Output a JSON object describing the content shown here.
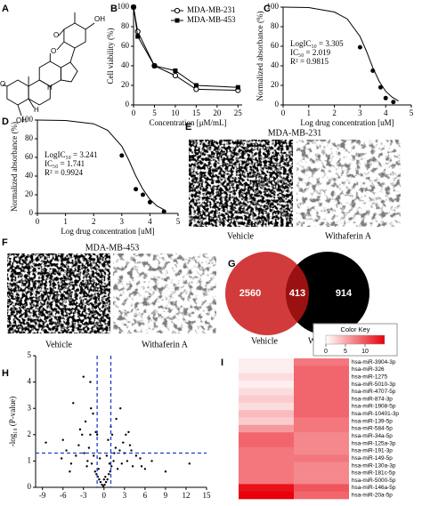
{
  "panel_labels": [
    "A",
    "B",
    "C",
    "D",
    "E",
    "F",
    "G",
    "H",
    "I"
  ],
  "structure_labels": [
    "OH",
    "O",
    "O",
    "O",
    "OH",
    "H",
    "H"
  ],
  "micrographs": [
    {
      "title": "MDA-MB-231",
      "labels": [
        "Vehicle",
        "Withaferin A"
      ]
    },
    {
      "title": "MDA-MB-453",
      "labels": [
        "Vehicle",
        "Withaferin A"
      ]
    }
  ],
  "chart_data": [
    {
      "type": "line",
      "xlabel": "Concentration [μM/mL]",
      "ylabel": "Cell viability (%)",
      "xlim": [
        0,
        26
      ],
      "xticks": [
        0,
        5,
        10,
        15,
        20,
        25
      ],
      "ylim": [
        0,
        100
      ],
      "yticks": [
        0,
        20,
        40,
        60,
        80,
        100
      ],
      "x": [
        0,
        1,
        5,
        10,
        15,
        25
      ],
      "legend": "top-right",
      "series": [
        {
          "name": "MDA-MB-231",
          "marker": "circle-open",
          "color": "#000000",
          "values": [
            100,
            75,
            40,
            30,
            16,
            15
          ]
        },
        {
          "name": "MDA-MB-453",
          "marker": "square",
          "color": "#000000",
          "values": [
            100,
            70,
            40,
            35,
            20,
            18
          ]
        }
      ]
    },
    {
      "type": "dose-response",
      "xlabel": "Log drug concentration [uM]",
      "ylabel": "Normalized absorbance (%)",
      "xlim": [
        0,
        5
      ],
      "xticks": [
        0,
        1,
        2,
        3,
        4,
        5
      ],
      "ylim": [
        0,
        100
      ],
      "yticks": [
        0,
        20,
        40,
        60,
        80,
        100
      ],
      "annotations": [
        "LogIC₅₀ = 3.305",
        "IC₅₀ = 2.019",
        "R² = 0.9815"
      ],
      "x": [
        3.0,
        3.5,
        3.8,
        4.0,
        4.3
      ],
      "values": [
        59,
        35,
        18,
        7,
        3
      ],
      "fit_x": [
        0,
        1,
        2,
        2.5,
        3,
        3.25,
        3.5,
        3.75,
        4,
        4.25,
        4.5
      ],
      "fit_values": [
        100,
        99.5,
        95,
        88,
        70,
        55,
        38,
        24,
        14,
        8,
        4
      ],
      "color": "#000000"
    },
    {
      "type": "dose-response",
      "xlabel": "Log drug concentration [uM]",
      "ylabel": "Normalized absorbance (%)",
      "xlim": [
        0,
        5
      ],
      "xticks": [
        0,
        1,
        2,
        3,
        4,
        5
      ],
      "ylim": [
        0,
        100
      ],
      "yticks": [
        0,
        20,
        40,
        60,
        80,
        100
      ],
      "annotations": [
        "LogIC₅₀ = 3.241",
        "IC₅₀ = 1.741",
        "R² = 0.9924"
      ],
      "x": [
        3.0,
        3.5,
        3.75,
        4.0,
        4.5
      ],
      "values": [
        62,
        26,
        20,
        12,
        2
      ],
      "fit_x": [
        0,
        1,
        2,
        2.5,
        3,
        3.25,
        3.5,
        3.75,
        4,
        4.25,
        4.5
      ],
      "fit_values": [
        100,
        99.5,
        96,
        89,
        72,
        57,
        40,
        26,
        15,
        8,
        4
      ],
      "color": "#000000"
    },
    {
      "type": "venn",
      "set_labels": [
        "Vehicle",
        "Withaferin A"
      ],
      "values": [
        2560,
        914
      ],
      "overlap": 413,
      "colors": [
        "#d23b3b",
        "#000000",
        "#9b1111"
      ]
    },
    {
      "type": "scatter",
      "ylabel": "-log₁₀ (P-value)",
      "xlim": [
        -10,
        15
      ],
      "xticks": [
        -9,
        -6,
        -3,
        0,
        3,
        6,
        9,
        12,
        15
      ],
      "ylim": [
        0,
        5
      ],
      "yticks": [
        0,
        1,
        2,
        3,
        4,
        5
      ],
      "x": [
        -8.5,
        -6.2,
        -5.5,
        -4.8,
        -4.1,
        -3.7,
        -3.2,
        -2.9,
        -2.5,
        -2.2,
        -2.0,
        -1.8,
        -1.5,
        -1.3,
        -1.1,
        -0.9,
        -0.7,
        -0.5,
        -0.3,
        -0.1,
        0.1,
        0.3,
        0.5,
        0.7,
        0.9,
        1.1,
        1.4,
        1.7,
        2.0,
        2.3,
        2.6,
        3.0,
        3.4,
        3.8,
        4.2,
        4.7,
        5.3,
        6.0,
        7.0,
        9.0,
        12.5,
        -4.5,
        -3.0,
        -2.7,
        -1.9,
        -1.2,
        -0.6,
        0.2,
        0.6,
        1.2,
        1.8,
        2.4,
        3.2,
        4.0,
        -3.5,
        -2.0,
        -1.6,
        0.0,
        0.4,
        1.0,
        2.8,
        -5.0,
        -2.4,
        -0.8,
        0.8,
        1.5,
        3.6,
        -6.0,
        -1.0,
        5.5
      ],
      "values": [
        1.7,
        1.1,
        1.4,
        0.9,
        1.2,
        1.6,
        2.0,
        1.3,
        0.8,
        1.5,
        2.0,
        0.9,
        1.2,
        0.6,
        0.5,
        0.4,
        0.3,
        0.2,
        0.1,
        0.05,
        0.1,
        0.2,
        0.3,
        0.5,
        0.6,
        0.8,
        1.0,
        1.5,
        0.7,
        1.4,
        0.9,
        1.3,
        1.0,
        1.6,
        0.8,
        1.2,
        1.1,
        0.7,
        1.0,
        0.6,
        0.9,
        3.2,
        4.2,
        2.5,
        3.0,
        2.1,
        1.1,
        0.4,
        1.8,
        2.0,
        2.6,
        3.0,
        2.0,
        1.4,
        2.2,
        4.0,
        2.8,
        0.3,
        1.2,
        2.3,
        1.7,
        0.6,
        1.0,
        0.7,
        0.9,
        1.3,
        2.1,
        1.8,
        2.0,
        0.8
      ],
      "color": "#000000",
      "vlines": [
        -1,
        1
      ],
      "hline": 1.3,
      "threshold_color": "#1f3fbf"
    },
    {
      "type": "heatmap",
      "rows": [
        "hsa-miR-3904-3p",
        "hsa-miR-326",
        "hsa-miR-1275",
        "hsa-miR-5010-3p",
        "hsa-miR-4707-5p",
        "hsa-miR-874-3p",
        "hsa-miR-1908-5p",
        "hsa-miR-10401-3p",
        "hsa-miR-139-5p",
        "hsa-miR-584-5p",
        "hsa-miR-34a-5p",
        "hsa-miR-125a-3p",
        "hsa-miR-191-3p",
        "hsa-miR-149-5p",
        "hsa-miR-130a-3p",
        "hsa-miR-181c-5p",
        "hsa-miR-5000-5p",
        "hsa-miR-146a-5p",
        "hsa-miR-20a-5p"
      ],
      "values": [
        [
          1,
          8
        ],
        [
          1,
          9
        ],
        [
          2,
          9
        ],
        [
          1,
          9
        ],
        [
          2,
          9
        ],
        [
          3,
          9
        ],
        [
          2,
          9
        ],
        [
          4,
          9
        ],
        [
          3,
          8
        ],
        [
          6,
          8
        ],
        [
          9,
          7
        ],
        [
          9,
          7
        ],
        [
          8,
          7
        ],
        [
          8,
          8
        ],
        [
          8,
          7
        ],
        [
          8,
          7
        ],
        [
          8,
          7
        ],
        [
          14,
          10
        ],
        [
          15,
          9
        ]
      ],
      "colors": [
        "#ffffff",
        "#e8000b"
      ],
      "clim": [
        0,
        15
      ],
      "colorbar_title": "Color Key",
      "colorbar_ticks": [
        0,
        5,
        10
      ]
    }
  ]
}
